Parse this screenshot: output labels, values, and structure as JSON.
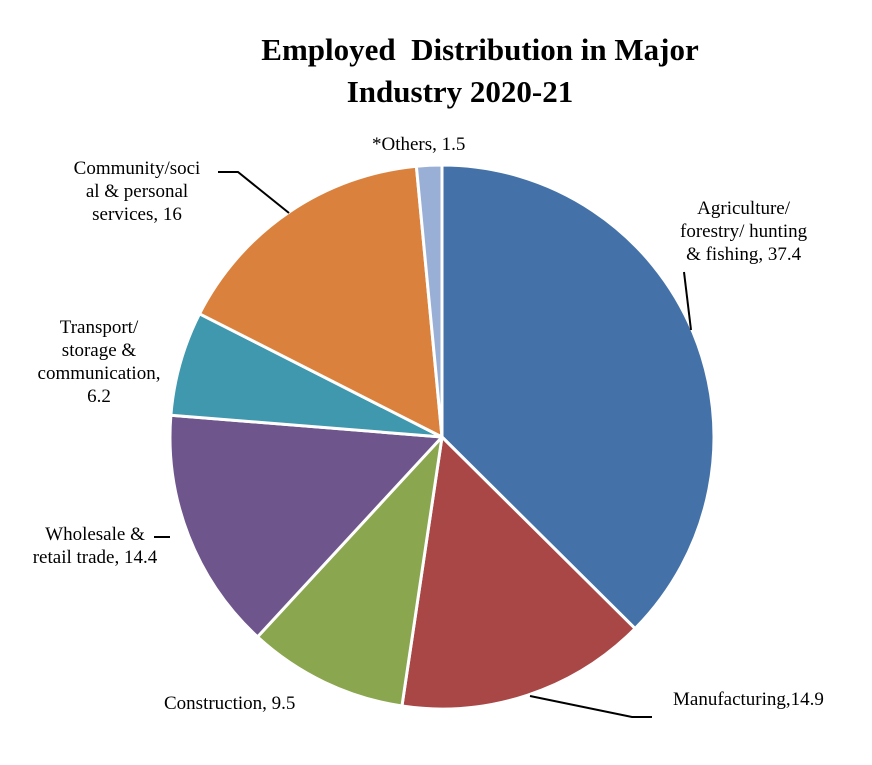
{
  "chart_data": {
    "type": "pie",
    "title": [
      "Employed  Distribution in Major",
      "Industry 2020-21"
    ],
    "slices": [
      {
        "name": "Agriculture/ forestry/ hunting & fishing",
        "value": 37.4,
        "color": "#4472A8",
        "label_lines": [
          "Agriculture/",
          "forestry/ hunting",
          "& fishing, 37.4"
        ]
      },
      {
        "name": "Manufacturing",
        "value": 14.9,
        "color": "#A94746",
        "label_lines": [
          "Manufacturing,14.9"
        ]
      },
      {
        "name": "Construction",
        "value": 9.5,
        "color": "#8AA64E",
        "label_lines": [
          "Construction, 9.5"
        ]
      },
      {
        "name": "Wholesale & retail trade",
        "value": 14.4,
        "color": "#6E568D",
        "label_lines": [
          "Wholesale &",
          "retail trade, 14.4"
        ]
      },
      {
        "name": "Transport/ storage & communication",
        "value": 6.2,
        "color": "#3F98AE",
        "label_lines": [
          "Transport/",
          "storage &",
          "communication,",
          "6.2"
        ]
      },
      {
        "name": "Community/social & personal services",
        "value": 16,
        "color": "#DA823D",
        "label_lines": [
          "Community/soci",
          "al & personal",
          "services, 16"
        ]
      },
      {
        "name": "*Others",
        "value": 1.5,
        "color": "#99AFD6",
        "label_lines": [
          "*Others, 1.5"
        ]
      }
    ]
  }
}
